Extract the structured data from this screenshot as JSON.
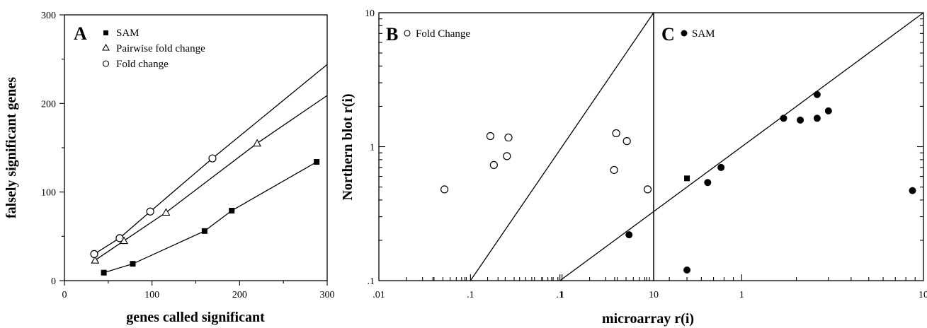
{
  "chart_data": [
    {
      "id": "A",
      "type": "scatter",
      "panel_label": "A",
      "xlabel": "genes called significant",
      "ylabel": "falsely significant genes",
      "xlim": [
        0,
        300
      ],
      "ylim": [
        0,
        300
      ],
      "xticks": [
        "0",
        "100",
        "200",
        "300"
      ],
      "yticks": [
        "0",
        "100",
        "200",
        "300"
      ],
      "series": [
        {
          "name": "SAM",
          "marker": "filled-square",
          "points": [
            [
              45,
              9
            ],
            [
              78,
              19
            ],
            [
              160,
              56
            ],
            [
              191,
              79
            ],
            [
              288,
              134
            ]
          ],
          "line": [
            [
              45,
              9
            ],
            [
              78,
              19
            ],
            [
              160,
              56
            ],
            [
              191,
              79
            ],
            [
              288,
              134
            ]
          ]
        },
        {
          "name": "Pairwise fold change",
          "marker": "open-triangle",
          "points": [
            [
              35,
              23
            ],
            [
              68,
              45
            ],
            [
              116,
              77
            ],
            [
              220,
              155
            ]
          ],
          "line": [
            [
              35,
              23
            ],
            [
              68,
              45
            ],
            [
              116,
              77
            ],
            [
              220,
              155
            ],
            [
              300,
              209
            ]
          ]
        },
        {
          "name": "Fold change",
          "marker": "open-circle",
          "points": [
            [
              34,
              30
            ],
            [
              63,
              48
            ],
            [
              98,
              78
            ],
            [
              169,
              138
            ]
          ],
          "line": [
            [
              34,
              30
            ],
            [
              63,
              48
            ],
            [
              98,
              78
            ],
            [
              169,
              138
            ],
            [
              300,
              244
            ]
          ]
        }
      ]
    },
    {
      "id": "B",
      "type": "scatter",
      "panel_label": "B",
      "legend": "Fold Change",
      "marker": "open-circle",
      "scale": "log",
      "xlim": [
        0.01,
        10
      ],
      "ylim": [
        0.1,
        10
      ],
      "xticks": [
        ".01",
        ".1",
        "1",
        "10"
      ],
      "yticks": [
        ".1",
        "1",
        "10"
      ],
      "ylabel": "Northern blot r(i)",
      "points": [
        [
          0.052,
          0.48
        ],
        [
          0.165,
          1.2
        ],
        [
          0.18,
          0.73
        ],
        [
          0.25,
          0.85
        ],
        [
          0.26,
          1.17
        ],
        [
          3.7,
          0.67
        ],
        [
          3.9,
          1.26
        ],
        [
          5.1,
          1.1
        ],
        [
          8.6,
          0.48
        ]
      ],
      "reference_line": [
        [
          0.1,
          0.1
        ],
        [
          10,
          10
        ]
      ]
    },
    {
      "id": "C",
      "type": "scatter",
      "panel_label": "C",
      "legend": "SAM",
      "marker": "filled-circle",
      "scale": "log",
      "xlim": [
        0.01,
        10
      ],
      "ylim": [
        0.1,
        10
      ],
      "xticks": [
        ".1",
        "1",
        "10"
      ],
      "xlabel": "microarray r(i)",
      "points": [
        [
          0.24,
          0.22
        ],
        [
          0.5,
          0.12
        ],
        [
          0.65,
          0.54
        ],
        [
          0.77,
          0.7
        ],
        [
          1.7,
          1.63
        ],
        [
          2.1,
          1.58
        ],
        [
          2.6,
          1.63
        ],
        [
          2.6,
          2.45
        ],
        [
          3.0,
          1.85
        ],
        [
          8.7,
          0.47
        ]
      ],
      "square_points": [
        [
          0.5,
          0.58
        ]
      ],
      "reference_line": [
        [
          0.1,
          0.1
        ],
        [
          10,
          10
        ]
      ]
    }
  ]
}
